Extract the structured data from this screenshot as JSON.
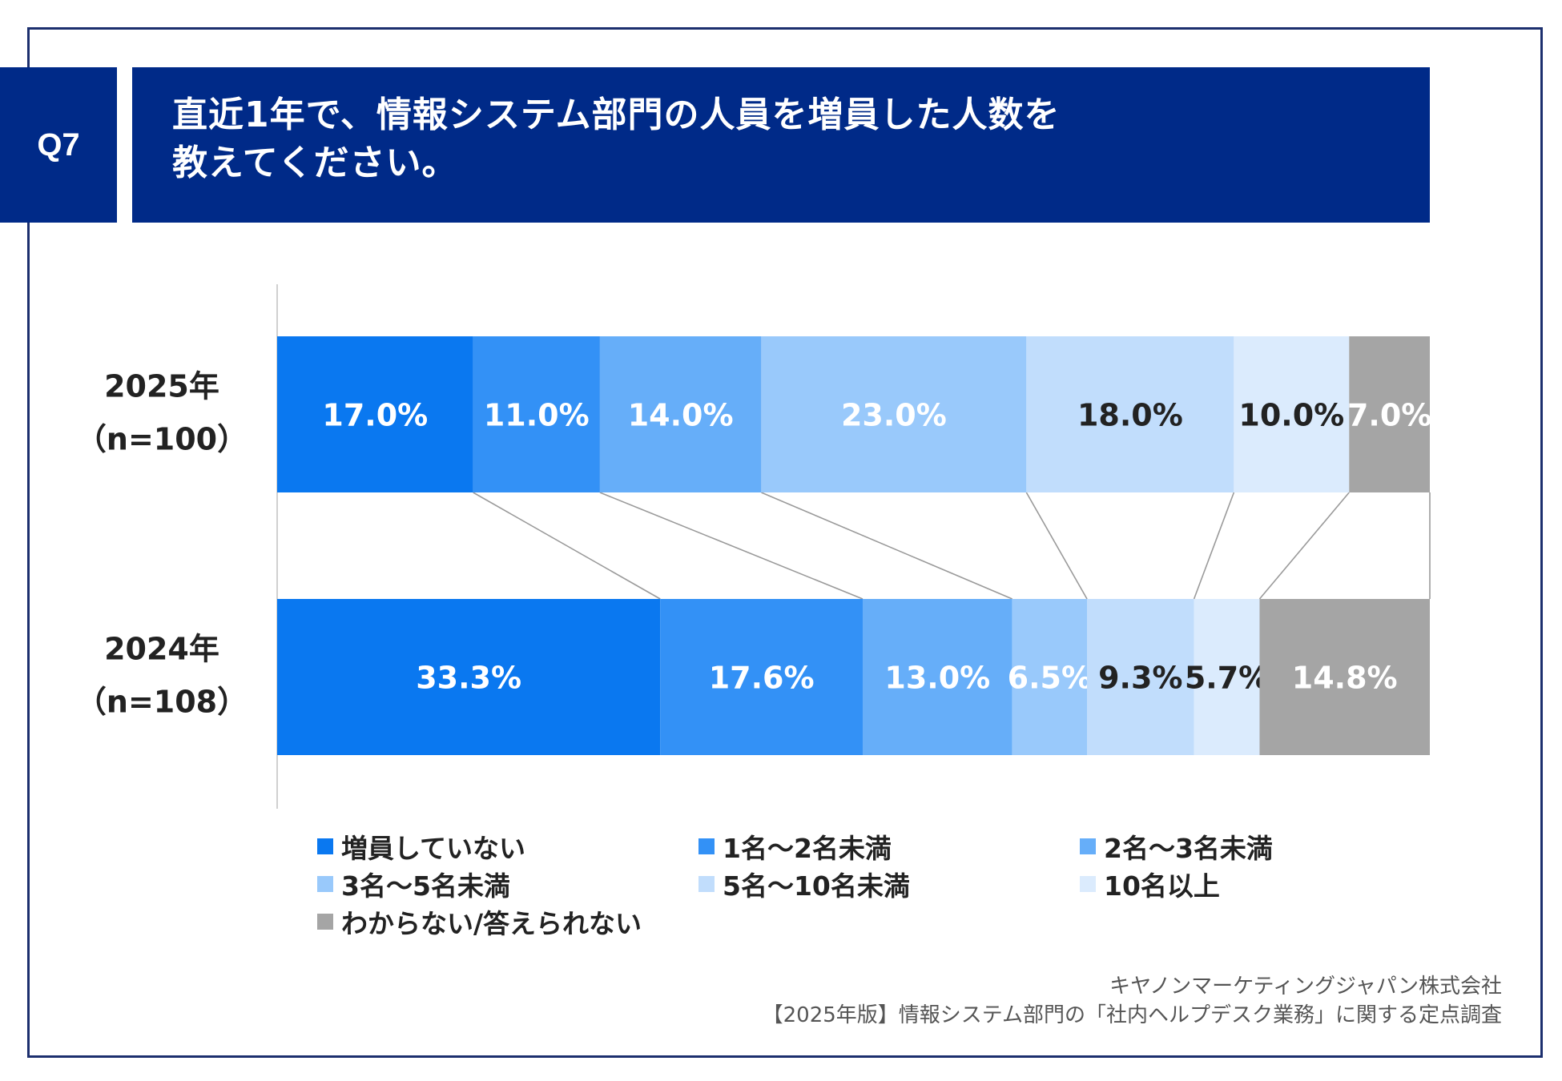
{
  "header": {
    "badge": "Q7",
    "question_line1": "直近1年で、情報システム部門の人員を増員した人数を",
    "question_line2": "教えてください。"
  },
  "chart_data": {
    "type": "bar",
    "orientation": "horizontal",
    "stacked": "percent",
    "categories": [
      "2025年（n=100）",
      "2024年（n=108）"
    ],
    "category_lines": [
      [
        "2025年",
        "（n=100）"
      ],
      [
        "2024年",
        "（n=108）"
      ]
    ],
    "series": [
      {
        "name": "増員していない",
        "color": "#0a78f0",
        "label_color": "#ffffff",
        "values": [
          17.0,
          33.3
        ],
        "labels": [
          "17.0%",
          "33.3%"
        ]
      },
      {
        "name": "1名～2名未満",
        "color": "#3391f6",
        "label_color": "#ffffff",
        "values": [
          11.0,
          17.6
        ],
        "labels": [
          "11.0%",
          "17.6%"
        ]
      },
      {
        "name": "2名～3名未満",
        "color": "#66aef9",
        "label_color": "#ffffff",
        "values": [
          14.0,
          13.0
        ],
        "labels": [
          "14.0%",
          "13.0%"
        ]
      },
      {
        "name": "3名～5名未満",
        "color": "#99c9fb",
        "label_color": "#ffffff",
        "values": [
          23.0,
          6.5
        ],
        "labels": [
          "23.0%",
          "6.5%"
        ]
      },
      {
        "name": "5名～10名未満",
        "color": "#c1ddfc",
        "label_color": "#222222",
        "values": [
          18.0,
          9.3
        ],
        "labels": [
          "18.0%",
          "9.3%"
        ]
      },
      {
        "name": "10名以上",
        "color": "#dbebfd",
        "label_color": "#222222",
        "values": [
          10.0,
          5.7
        ],
        "labels": [
          "10.0%",
          "5.7%"
        ]
      },
      {
        "name": "わからない/答えられない",
        "color": "#a5a5a5",
        "label_color": "#ffffff",
        "values": [
          7.0,
          14.8
        ],
        "labels": [
          "7.0%",
          "14.8%"
        ]
      }
    ],
    "xlim": [
      0,
      100
    ],
    "grid": false,
    "series_lines": true,
    "legend_position": "bottom"
  },
  "footer": {
    "company": "キヤノンマーケティングジャパン株式会社",
    "survey": "【2025年版】情報システム部門の「社内ヘルプデスク業務」に関する定点調査"
  }
}
